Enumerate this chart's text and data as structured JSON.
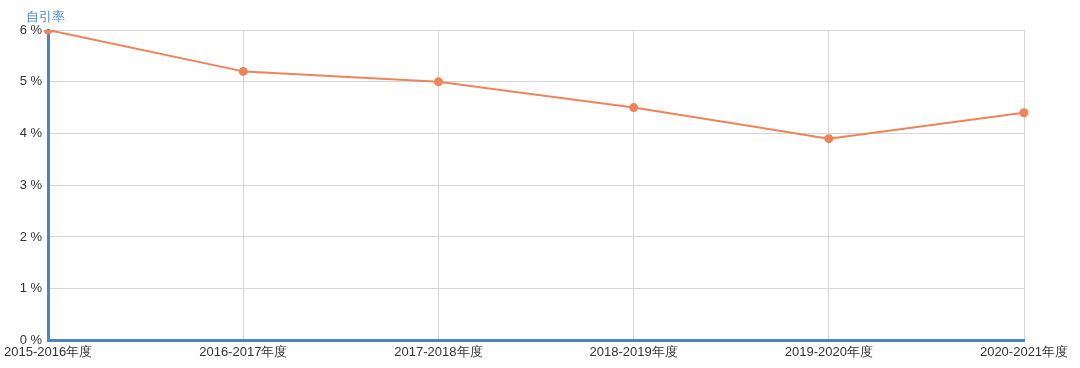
{
  "chart_data": {
    "type": "line",
    "ylabel": "自引率",
    "categories": [
      "2015-2016年度",
      "2016-2017年度",
      "2017-2018年度",
      "2018-2019年度",
      "2019-2020年度",
      "2020-2021年度"
    ],
    "series": [
      {
        "color": "#ee8459",
        "values": [
          6.0,
          5.2,
          5.0,
          4.5,
          3.9,
          4.4
        ]
      }
    ],
    "ylim": [
      0,
      6
    ],
    "yticks": [
      {
        "value": 0,
        "label": "0 %"
      },
      {
        "value": 1,
        "label": "1 %"
      },
      {
        "value": 2,
        "label": "2 %"
      },
      {
        "value": 3,
        "label": "3 %"
      },
      {
        "value": 4,
        "label": "4 %"
      },
      {
        "value": 5,
        "label": "5 %"
      },
      {
        "value": 6,
        "label": "6 %"
      }
    ],
    "grid": true,
    "legend": false,
    "marker": "circle",
    "line_style": "solid"
  }
}
